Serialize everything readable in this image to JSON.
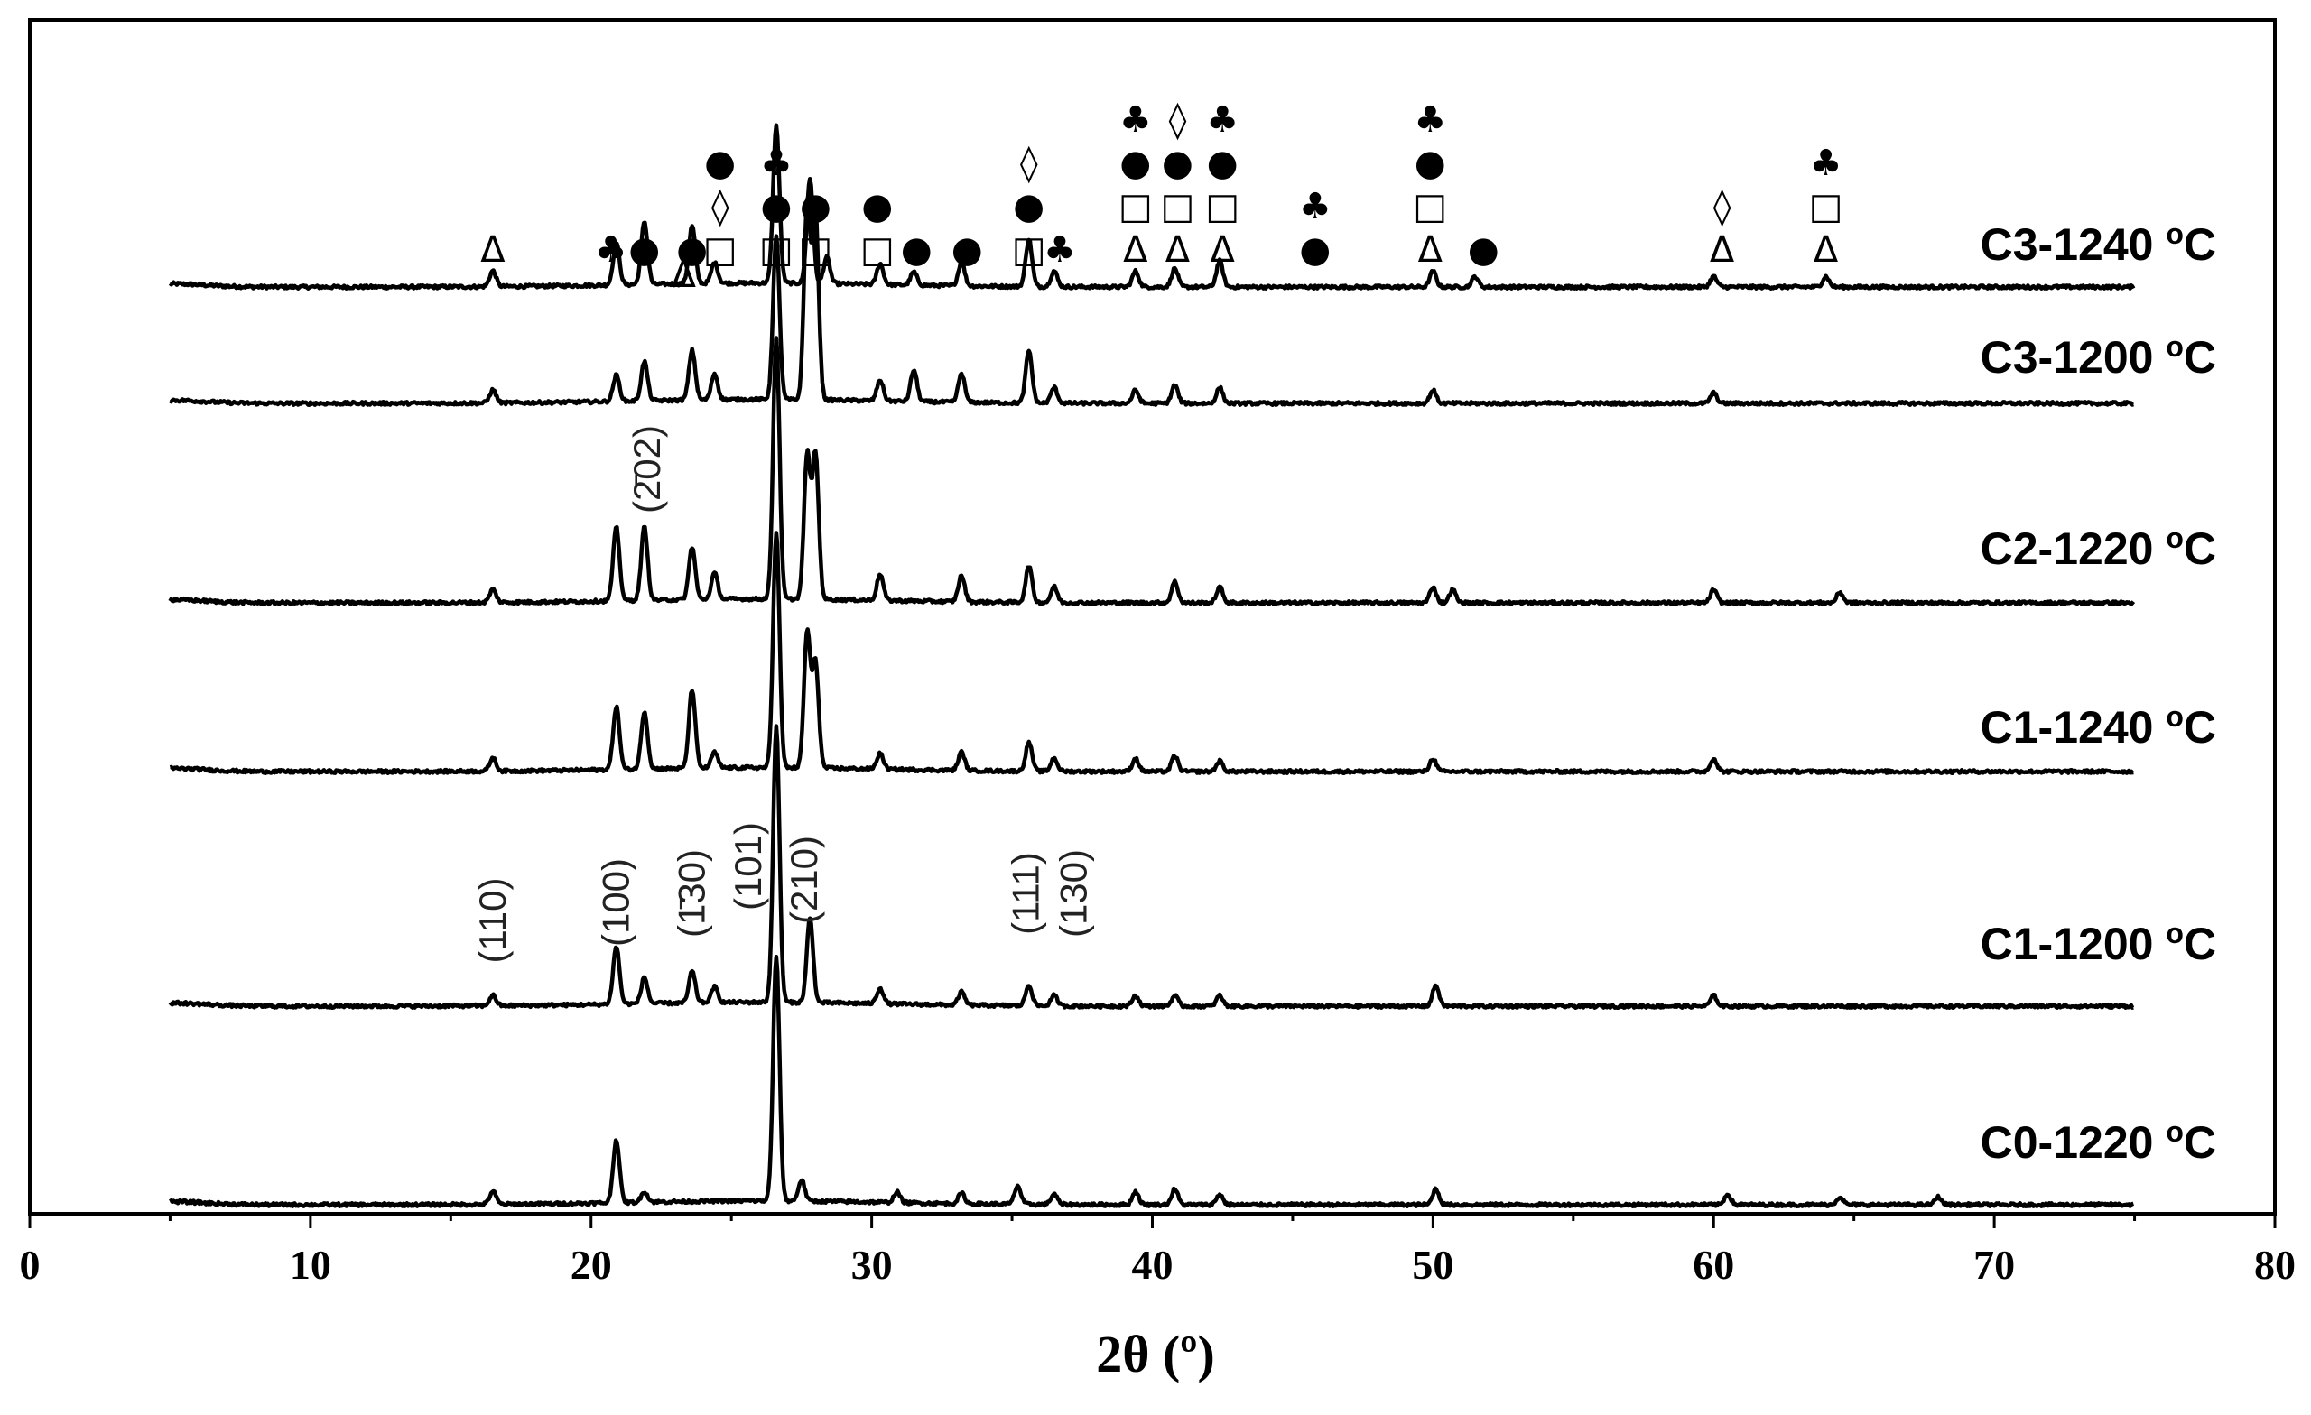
{
  "chart_data": {
    "type": "line",
    "xlabel": "2θ (º)",
    "ylabel": "",
    "xlim": [
      0,
      80
    ],
    "xticks": [
      0,
      10,
      20,
      30,
      40,
      50,
      60,
      70,
      80
    ],
    "x_range_measured": [
      5,
      75
    ],
    "grid": false,
    "legend": "none",
    "series": [
      {
        "name": "C3-1240 ºC",
        "label_text": "C3-1240",
        "label_unit": "C",
        "peaks": [
          [
            16.5,
            0.06
          ],
          [
            20.9,
            0.16
          ],
          [
            21.9,
            0.24
          ],
          [
            23.6,
            0.22
          ],
          [
            24.4,
            0.08
          ],
          [
            26.6,
            0.6
          ],
          [
            27.8,
            0.4
          ],
          [
            28.4,
            0.1
          ],
          [
            30.3,
            0.08
          ],
          [
            31.5,
            0.05
          ],
          [
            33.2,
            0.09
          ],
          [
            35.6,
            0.18
          ],
          [
            36.5,
            0.06
          ],
          [
            39.4,
            0.06
          ],
          [
            40.8,
            0.07
          ],
          [
            42.4,
            0.1
          ],
          [
            50.0,
            0.06
          ],
          [
            51.5,
            0.04
          ],
          [
            60.0,
            0.04
          ],
          [
            64.0,
            0.04
          ]
        ]
      },
      {
        "name": "C3-1200 ºC",
        "label_text": "C3-1200",
        "label_unit": "C",
        "peaks": [
          [
            16.5,
            0.05
          ],
          [
            20.9,
            0.1
          ],
          [
            21.9,
            0.15
          ],
          [
            23.6,
            0.19
          ],
          [
            24.4,
            0.1
          ],
          [
            26.6,
            0.62
          ],
          [
            27.7,
            0.75
          ],
          [
            28.0,
            0.7
          ],
          [
            30.3,
            0.08
          ],
          [
            31.5,
            0.12
          ],
          [
            33.2,
            0.11
          ],
          [
            35.6,
            0.2
          ],
          [
            36.5,
            0.06
          ],
          [
            39.4,
            0.05
          ],
          [
            40.8,
            0.07
          ],
          [
            42.4,
            0.06
          ],
          [
            50.0,
            0.05
          ],
          [
            60.0,
            0.04
          ]
        ]
      },
      {
        "name": "C2-1220 ºC",
        "label_text": "C2-1220",
        "label_unit": "C",
        "peaks": [
          [
            16.5,
            0.05
          ],
          [
            20.9,
            0.28
          ],
          [
            21.9,
            0.28
          ],
          [
            23.6,
            0.2
          ],
          [
            24.4,
            0.1
          ],
          [
            26.6,
            1.0
          ],
          [
            27.7,
            0.55
          ],
          [
            28.0,
            0.55
          ],
          [
            30.3,
            0.1
          ],
          [
            33.2,
            0.1
          ],
          [
            35.6,
            0.14
          ],
          [
            36.5,
            0.06
          ],
          [
            40.8,
            0.08
          ],
          [
            42.4,
            0.06
          ],
          [
            50.0,
            0.06
          ],
          [
            50.7,
            0.05
          ],
          [
            60.0,
            0.05
          ],
          [
            64.5,
            0.04
          ]
        ]
      },
      {
        "name": "C1-1240 ºC",
        "label_text": "C1-1240",
        "label_unit": "C",
        "peaks": [
          [
            16.5,
            0.05
          ],
          [
            20.9,
            0.24
          ],
          [
            21.9,
            0.22
          ],
          [
            23.6,
            0.3
          ],
          [
            24.4,
            0.06
          ],
          [
            26.6,
            0.9
          ],
          [
            27.7,
            0.52
          ],
          [
            28.0,
            0.4
          ],
          [
            30.3,
            0.06
          ],
          [
            33.2,
            0.07
          ],
          [
            35.6,
            0.11
          ],
          [
            36.5,
            0.05
          ],
          [
            39.4,
            0.05
          ],
          [
            40.8,
            0.06
          ],
          [
            42.4,
            0.04
          ],
          [
            50.0,
            0.05
          ],
          [
            60.0,
            0.05
          ]
        ]
      },
      {
        "name": "C1-1200 ºC",
        "label_text": "C1-1200",
        "label_unit": "C",
        "peaks": [
          [
            16.5,
            0.04
          ],
          [
            20.9,
            0.22
          ],
          [
            21.9,
            0.1
          ],
          [
            23.6,
            0.12
          ],
          [
            24.4,
            0.06
          ],
          [
            26.6,
            1.05
          ],
          [
            27.8,
            0.32
          ],
          [
            30.3,
            0.06
          ],
          [
            33.2,
            0.05
          ],
          [
            35.6,
            0.08
          ],
          [
            36.5,
            0.04
          ],
          [
            39.4,
            0.04
          ],
          [
            40.8,
            0.04
          ],
          [
            42.4,
            0.04
          ],
          [
            50.1,
            0.08
          ],
          [
            60.0,
            0.04
          ]
        ]
      },
      {
        "name": "C0-1220 ºC",
        "label_text": "C0-1220",
        "label_unit": "C",
        "peaks": [
          [
            16.5,
            0.05
          ],
          [
            20.9,
            0.24
          ],
          [
            21.9,
            0.04
          ],
          [
            26.6,
            0.93
          ],
          [
            27.5,
            0.08
          ],
          [
            30.9,
            0.04
          ],
          [
            33.2,
            0.04
          ],
          [
            35.2,
            0.07
          ],
          [
            36.5,
            0.04
          ],
          [
            39.4,
            0.05
          ],
          [
            40.8,
            0.06
          ],
          [
            42.4,
            0.04
          ],
          [
            50.1,
            0.06
          ],
          [
            60.5,
            0.04
          ],
          [
            64.5,
            0.03
          ],
          [
            68.0,
            0.03
          ]
        ]
      }
    ],
    "annotations": {
      "miller_indices": [
        {
          "text": "(110)",
          "x": 16.5
        },
        {
          "text": "(100)",
          "x": 20.9
        },
        {
          "text": "(1̄30)",
          "x": 23.6
        },
        {
          "text": "(101)",
          "x": 25.6
        },
        {
          "text": "(210)",
          "x": 27.6
        },
        {
          "text": "(111)",
          "x": 35.5
        },
        {
          "text": "(130)",
          "x": 37.2
        },
        {
          "text": "(2̄02)",
          "x": 22.0
        }
      ],
      "phase_markers": [
        {
          "x": 16.5,
          "symbols": [
            "Δ"
          ]
        },
        {
          "x": 20.7,
          "symbols": [
            "♣"
          ]
        },
        {
          "x": 21.9,
          "symbols": [
            "●"
          ]
        },
        {
          "x": 23.3,
          "symbols": [
            "Δ"
          ]
        },
        {
          "x": 23.6,
          "symbols": [
            "●"
          ]
        },
        {
          "x": 24.6,
          "symbols": [
            "□",
            "◊",
            "●"
          ]
        },
        {
          "x": 26.6,
          "symbols": [
            "□",
            "●",
            "♣"
          ]
        },
        {
          "x": 28.0,
          "symbols": [
            "□",
            "●"
          ]
        },
        {
          "x": 30.2,
          "symbols": [
            "□",
            "●"
          ]
        },
        {
          "x": 31.6,
          "symbols": [
            "●"
          ]
        },
        {
          "x": 33.4,
          "symbols": [
            "●"
          ]
        },
        {
          "x": 35.6,
          "symbols": [
            "□",
            "●",
            "◊"
          ]
        },
        {
          "x": 36.7,
          "symbols": [
            "♣"
          ]
        },
        {
          "x": 39.4,
          "symbols": [
            "Δ",
            "□",
            "●",
            "♣"
          ]
        },
        {
          "x": 40.9,
          "symbols": [
            "Δ",
            "□",
            "●",
            "◊"
          ]
        },
        {
          "x": 42.5,
          "symbols": [
            "Δ",
            "□",
            "●",
            "♣"
          ]
        },
        {
          "x": 45.8,
          "symbols": [
            "●",
            "♣"
          ]
        },
        {
          "x": 49.9,
          "symbols": [
            "Δ",
            "□",
            "●",
            "♣"
          ]
        },
        {
          "x": 51.8,
          "symbols": [
            "●"
          ]
        },
        {
          "x": 60.3,
          "symbols": [
            "Δ",
            "◊"
          ]
        },
        {
          "x": 64.0,
          "symbols": [
            "Δ",
            "□",
            "♣"
          ]
        }
      ]
    }
  }
}
